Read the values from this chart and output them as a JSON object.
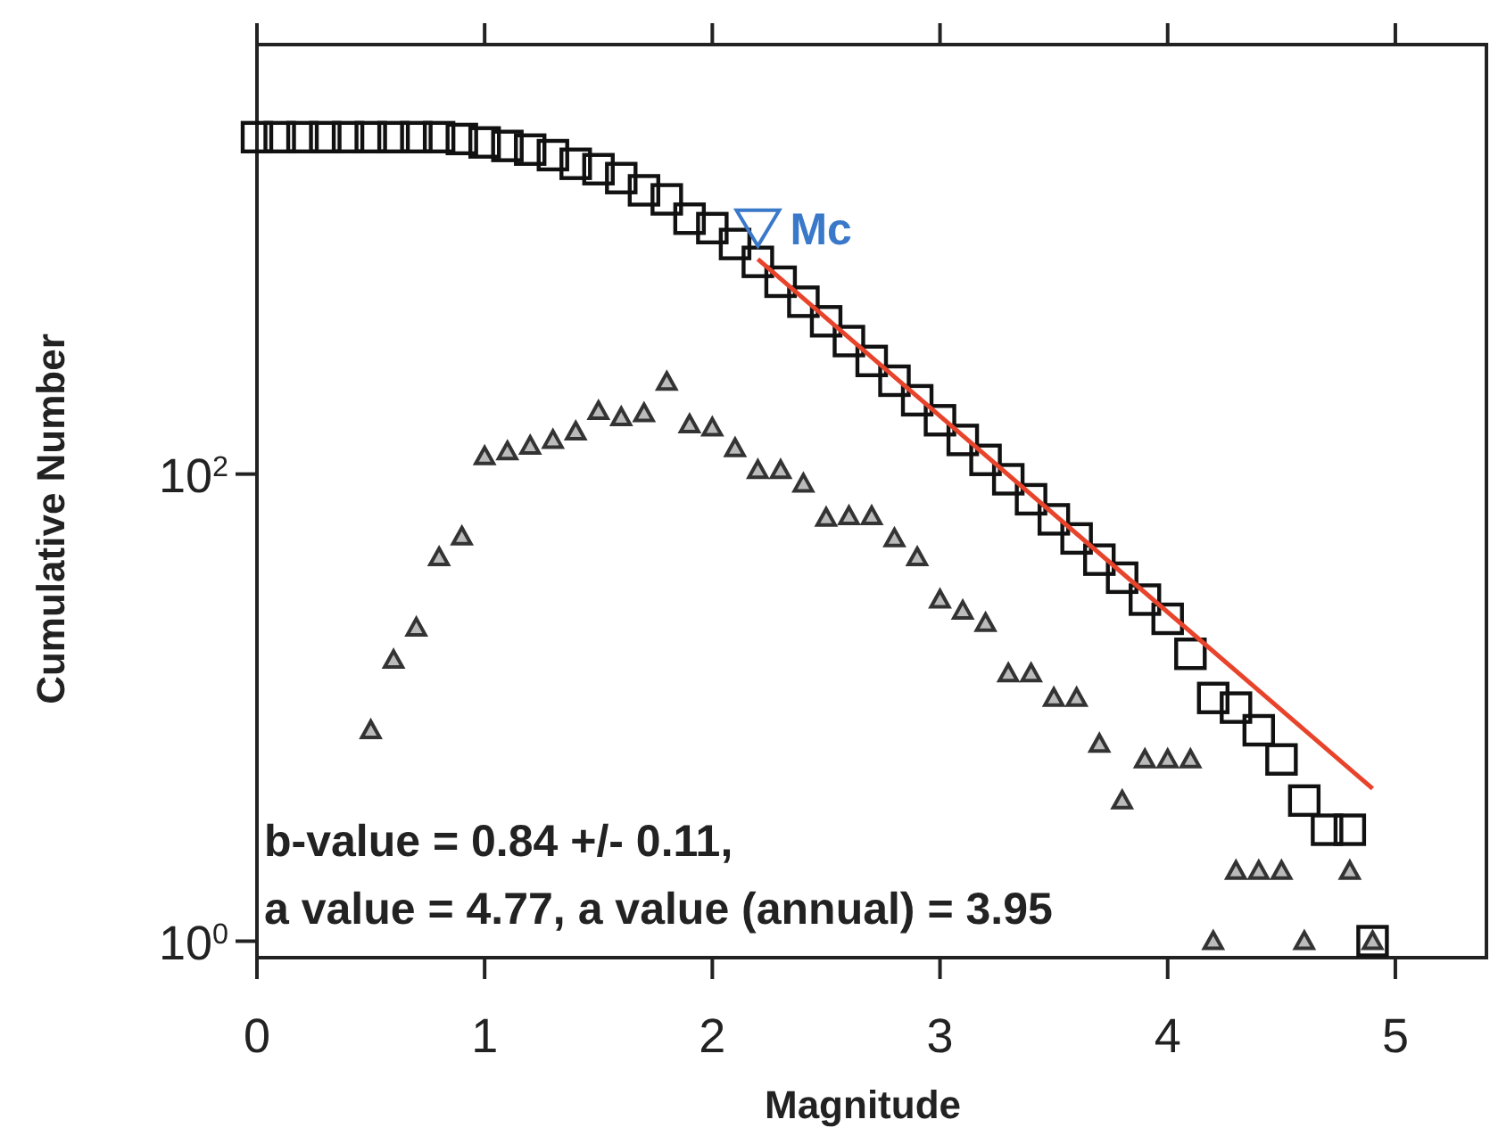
{
  "chart_data": {
    "type": "scatter",
    "xlabel": "Magnitude",
    "ylabel": "Cumulative Number",
    "log": "y",
    "xlim": [
      0,
      5.4
    ],
    "xticks": [
      0,
      1,
      2,
      3,
      4,
      5
    ],
    "ylim": [
      0.85,
      6900
    ],
    "yticks": [
      {
        "value": 1,
        "label": "10$^{0}$"
      },
      {
        "value": 100,
        "label": "10$^{2}$"
      }
    ],
    "grid": false,
    "series": [
      {
        "marker": "square",
        "color": "#111111",
        "x": [
          0,
          0.1,
          0.2,
          0.3,
          0.4,
          0.5,
          0.6,
          0.7,
          0.8,
          0.9,
          1.0,
          1.1,
          1.2,
          1.3,
          1.4,
          1.5,
          1.6,
          1.7,
          1.8,
          1.9,
          2.0,
          2.1,
          2.2,
          2.3,
          2.4,
          2.5,
          2.6,
          2.7,
          2.8,
          2.9,
          3.0,
          3.1,
          3.2,
          3.3,
          3.4,
          3.5,
          3.6,
          3.7,
          3.8,
          3.9,
          4.0,
          4.1,
          4.2,
          4.3,
          4.4,
          4.5,
          4.6,
          4.7,
          4.8,
          4.9
        ],
        "values": [
          2770,
          2770,
          2770,
          2770,
          2770,
          2770,
          2770,
          2770,
          2770,
          2720,
          2630,
          2540,
          2450,
          2320,
          2130,
          2020,
          1850,
          1640,
          1500,
          1240,
          1130,
          966,
          810,
          666,
          547,
          451,
          371,
          305,
          251,
          207,
          170,
          140,
          115,
          95,
          78,
          64,
          53,
          43,
          36,
          29,
          24,
          17,
          11,
          10,
          8,
          6,
          4,
          3,
          3,
          1
        ]
      },
      {
        "marker": "triangle",
        "color": "#333333",
        "x": [
          0.5,
          0.6,
          0.7,
          0.8,
          0.9,
          1.0,
          1.1,
          1.2,
          1.3,
          1.4,
          1.5,
          1.6,
          1.7,
          1.8,
          1.9,
          2.0,
          2.1,
          2.2,
          2.3,
          2.4,
          2.5,
          2.6,
          2.7,
          2.8,
          2.9,
          3.0,
          3.1,
          3.2,
          3.3,
          3.4,
          3.5,
          3.6,
          3.7,
          3.8,
          3.9,
          4.0,
          4.1,
          4.2,
          4.3,
          4.4,
          4.5,
          4.6,
          4.8,
          4.9
        ],
        "values": [
          8,
          16,
          22,
          44,
          54,
          119,
          125,
          132,
          140,
          152,
          186,
          175,
          182,
          248,
          163,
          158,
          129,
          104,
          104,
          91,
          65,
          66,
          66,
          53,
          44,
          29,
          26,
          23,
          14,
          14,
          11,
          11,
          7,
          4,
          6,
          6,
          6,
          1,
          2,
          2,
          2,
          1,
          2,
          1
        ]
      },
      {
        "type": "line",
        "color": "#e8432b",
        "x": [
          2.2,
          4.9
        ],
        "values": [
          832,
          4.5
        ]
      }
    ],
    "annotations": [
      {
        "text": "Mc",
        "x": 2.2,
        "y": 1130
      },
      "b-value = 0.84 +/- 0.11,",
      "a value = 4.77,  a value (annual) = 3.95"
    ]
  }
}
